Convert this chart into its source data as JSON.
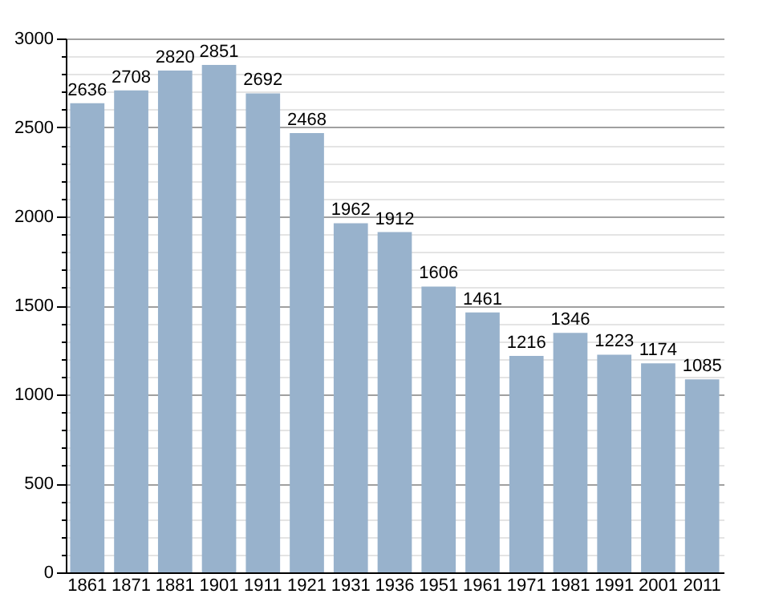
{
  "chart_data": {
    "type": "bar",
    "categories": [
      "1861",
      "1871",
      "1881",
      "1901",
      "1911",
      "1921",
      "1931",
      "1936",
      "1951",
      "1961",
      "1971",
      "1981",
      "1991",
      "2001",
      "2011"
    ],
    "values": [
      2636,
      2708,
      2820,
      2851,
      2692,
      2468,
      1962,
      1912,
      1606,
      1461,
      1216,
      1346,
      1223,
      1174,
      1085
    ],
    "color": "#98b2cc",
    "ylim": [
      0,
      3000
    ],
    "yticks": [
      0,
      {
        "value": 100,
        "label": null
      },
      {
        "value": 200,
        "label": null
      },
      {
        "value": 300,
        "label": null
      },
      {
        "value": 400,
        "label": null
      },
      500,
      {
        "value": 600,
        "label": null
      },
      {
        "value": 700,
        "label": null
      },
      {
        "value": 800,
        "label": null
      },
      {
        "value": 900,
        "label": null
      },
      1000,
      {
        "value": 1100,
        "label": null
      },
      {
        "value": 1200,
        "label": null
      },
      {
        "value": 1300,
        "label": null
      },
      {
        "value": 1400,
        "label": null
      },
      1500,
      {
        "value": 1600,
        "label": null
      },
      {
        "value": 1700,
        "label": null
      },
      {
        "value": 1800,
        "label": null
      },
      {
        "value": 1900,
        "label": null
      },
      2000,
      {
        "value": 2100,
        "label": null
      },
      {
        "value": 2200,
        "label": null
      },
      {
        "value": 2300,
        "label": null
      },
      {
        "value": 2400,
        "label": null
      },
      2500,
      {
        "value": 2600,
        "label": null
      },
      {
        "value": 2700,
        "label": null
      },
      {
        "value": 2800,
        "label": null
      },
      {
        "value": 2900,
        "label": null
      },
      3000
    ],
    "grid": "y",
    "data_labels": true
  }
}
